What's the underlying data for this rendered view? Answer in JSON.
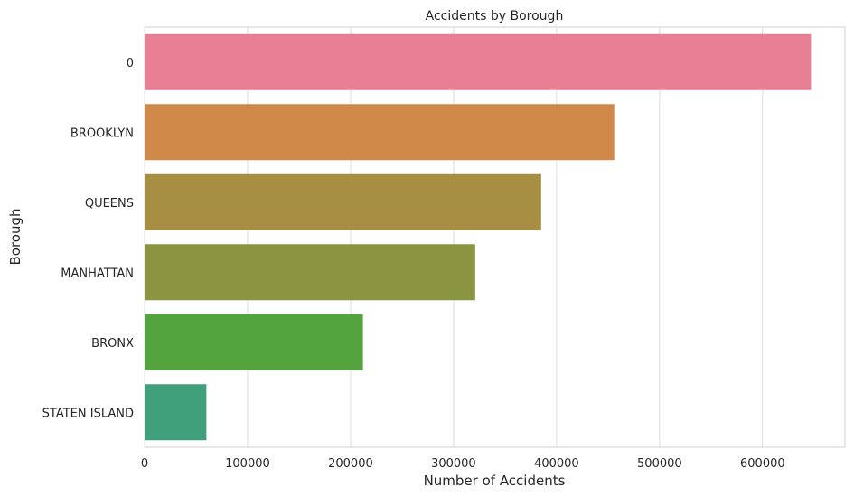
{
  "chart_data": {
    "type": "bar",
    "orientation": "horizontal",
    "title": "Accidents by Borough",
    "xlabel": "Number of Accidents",
    "ylabel": "Borough",
    "categories": [
      "0",
      "BROOKLYN",
      "QUEENS",
      "MANHATTAN",
      "BRONX",
      "STATEN ISLAND"
    ],
    "values": [
      647000,
      456000,
      385000,
      321000,
      212000,
      60000
    ],
    "colors": [
      "#e87e91",
      "#cf8848",
      "#a68e42",
      "#8b9541",
      "#53a43d",
      "#41a07c"
    ],
    "xlim": [
      0,
      680000
    ],
    "xticks": [
      0,
      100000,
      200000,
      300000,
      400000,
      500000,
      600000
    ],
    "xtick_labels": [
      "0",
      "100000",
      "200000",
      "300000",
      "400000",
      "500000",
      "600000"
    ],
    "grid": true
  }
}
